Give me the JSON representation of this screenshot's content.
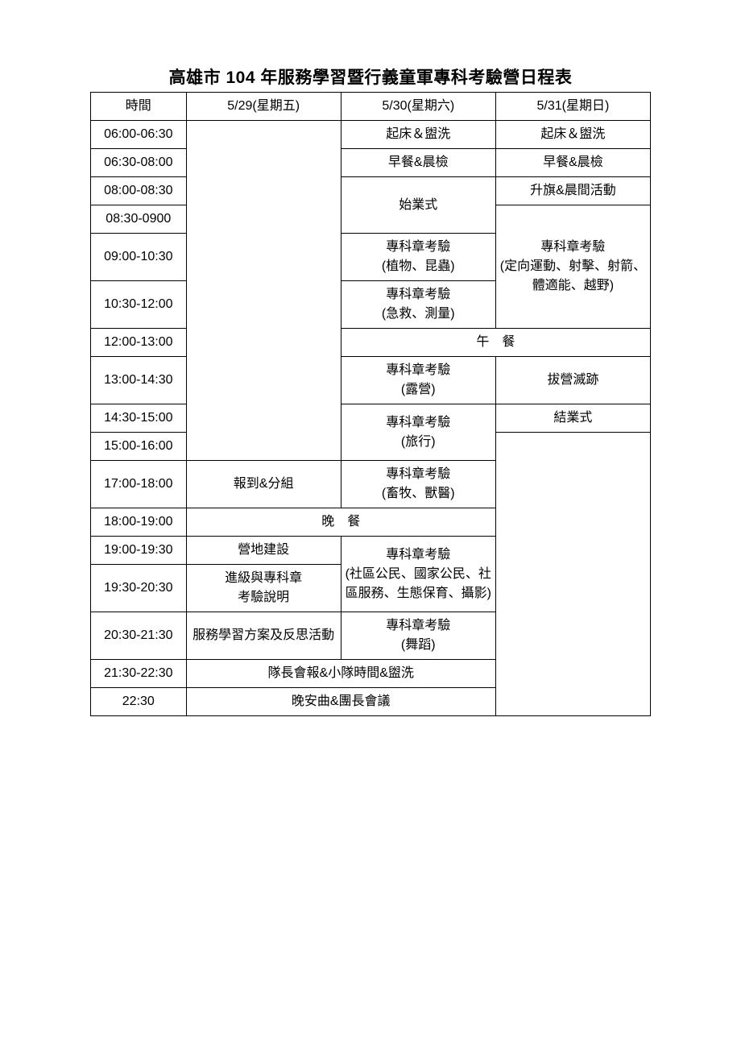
{
  "title": "高雄市 104 年服務學習暨行義童軍專科考驗營日程表",
  "headers": {
    "time": "時間",
    "day1": "5/29(星期五)",
    "day2": "5/30(星期六)",
    "day3": "5/31(星期日)"
  },
  "times": {
    "t1": "06:00-06:30",
    "t2": "06:30-08:00",
    "t3": "08:00-08:30",
    "t4": "08:30-0900",
    "t5": "09:00-10:30",
    "t6": "10:30-12:00",
    "t7": "12:00-13:00",
    "t8": "13:00-14:30",
    "t9": "14:30-15:00",
    "t10": "15:00-16:00",
    "t11": "17:00-18:00",
    "t12": "18:00-19:00",
    "t13": "19:00-19:30",
    "t14": "19:30-20:30",
    "t15": "20:30-21:30",
    "t16": "21:30-22:30",
    "t17": "22:30"
  },
  "cells": {
    "wake1": "起床＆盥洗",
    "wake2": "起床＆盥洗",
    "breakfast1": "早餐&晨檢",
    "breakfast2": "早餐&晨檢",
    "opening": "始業式",
    "flag": "升旗&晨間活動",
    "exam_plant": "專科章考驗\n(植物、昆蟲)",
    "exam_rescue": "專科章考驗\n(急救、測量)",
    "exam_day3": "專科章考驗\n(定向運動、射擊、射箭、體適能、越野)",
    "lunch": "午　餐",
    "exam_camp": "專科章考驗\n(露營)",
    "break_camp": "拔營滅跡",
    "exam_travel": "專科章考驗\n(旅行)",
    "closing": "結業式",
    "checkin": "報到&分組",
    "exam_vet": "專科章考驗\n(畜牧、獸醫)",
    "dinner": "晚　餐",
    "camp_build": "營地建設",
    "exam_civic": "專科章考驗\n(社區公民、國家公民、社區服務、生態保育、攝影)",
    "level_desc": "進級與專科章\n考驗說明",
    "service": "服務學習方案及反思活動",
    "exam_dance": "專科章考驗\n(舞蹈)",
    "leader_meet": "隊長會報&小隊時間&盥洗",
    "goodnight": "晚安曲&團長會議"
  }
}
